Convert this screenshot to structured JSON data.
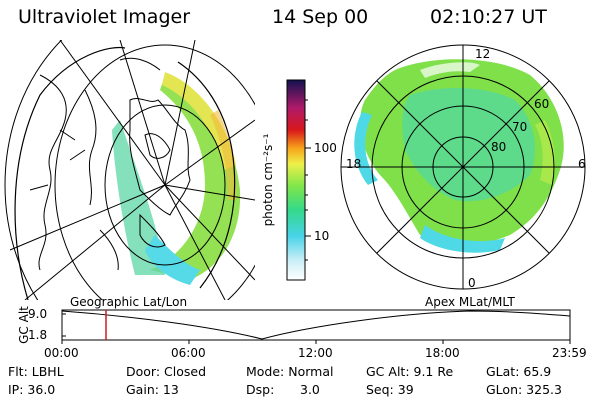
{
  "header": {
    "instrument": "Ultraviolet Imager",
    "date": "14 Sep 00",
    "time": "02:10:27 UT"
  },
  "colorbar": {
    "unit_label": "photon cm⁻²s⁻¹",
    "ticks": [
      "100",
      "10"
    ],
    "scale": "log"
  },
  "polar_plot": {
    "lat_labels": [
      "60",
      "70",
      "80"
    ],
    "mlt_labels": [
      "12",
      "18",
      "6",
      "0"
    ]
  },
  "timeline": {
    "left_label": "Geographic Lat/Lon",
    "right_label": "Apex MLat/MLT",
    "axis_name": "GC Alt",
    "y_ticks": [
      "9.0",
      "1.8"
    ],
    "x_ticks": [
      "00:00",
      "06:00",
      "12:00",
      "18:00",
      "23:59"
    ],
    "current_time_marker": "02:10"
  },
  "info": {
    "flt": "Flt: LBHL",
    "ip": "IP: 36.0",
    "door": "Door: Closed",
    "gain": "Gain: 13",
    "mode": "Mode: Normal",
    "dsp_label": "Dsp:",
    "dsp_value": "3.0",
    "gcalt": "GC Alt: 9.1 Re",
    "seq": "Seq: 39",
    "glat": "GLat:  65.9",
    "glon": "GLon: 325.3"
  },
  "colors": {
    "aurora_cyan": "#4fd9e6",
    "aurora_green": "#7ee04a",
    "aurora_yellow": "#e8e64a",
    "marker_red": "#d11a1a"
  }
}
